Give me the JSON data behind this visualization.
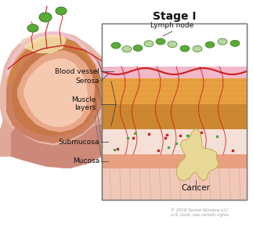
{
  "title": "Stage I",
  "title_fontsize": 10,
  "bg_color": "#ffffff",
  "inset_border_color": "#777777",
  "labels": {
    "lymph_node": "Lymph node",
    "blood_vessel": "Blood vessel",
    "serosa": "Serosa",
    "muscle_layers": "Muscle\nlayers",
    "submucosa": "Submucosa",
    "mucosa": "Mucosa",
    "cancer": "Cancer"
  },
  "copyright": "© 2018 Terese Winslow LLC\nU.S. Govt. has certain rights",
  "lymph_node_green": "#5aaa38",
  "lymph_node_light": "#b8d8a0",
  "blood_vessel_color": "#cc2020",
  "serosa_color": "#f0b8c8",
  "muscle1_color": "#e8a040",
  "muscle2_color": "#cc8830",
  "submucosa_color": "#f5e0d8",
  "mucosa_color": "#e8a080",
  "mucosa_stripe_color": "#d08868",
  "interior_color": "#f0c8b8",
  "cancer_color": "#e8d898",
  "cancer_edge": "#c8a850"
}
